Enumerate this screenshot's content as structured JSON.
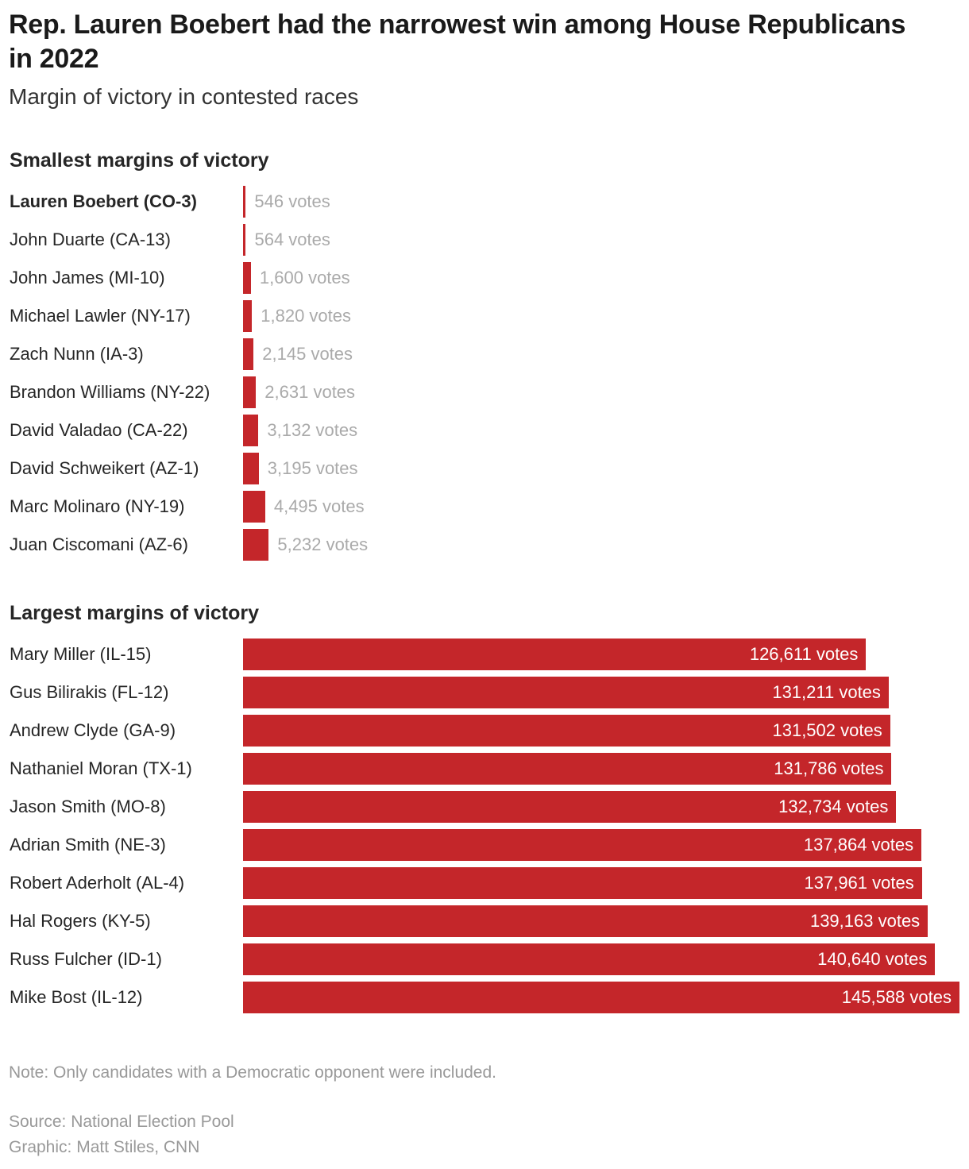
{
  "title": "Rep. Lauren Boebert had the narrowest win among House Republicans in 2022",
  "subtitle": "Margin of victory in contested races",
  "chart_data": [
    {
      "type": "bar",
      "orientation": "horizontal",
      "title": "Smallest margins of victory",
      "color": "#c4262a",
      "highlight": "Lauren Boebert (CO-3)",
      "unit": "votes",
      "categories": [
        "Lauren Boebert (CO-3)",
        "John Duarte (CA-13)",
        "John James (MI-10)",
        "Michael Lawler (NY-17)",
        "Zach Nunn (IA-3)",
        "Brandon Williams (NY-22)",
        "David Valadao (CA-22)",
        "David Schweikert (AZ-1)",
        "Marc Molinaro (NY-19)",
        "Juan Ciscomani (AZ-6)"
      ],
      "values": [
        546,
        564,
        1600,
        1820,
        2145,
        2631,
        3132,
        3195,
        4495,
        5232
      ],
      "labels": [
        "546 votes",
        "564 votes",
        "1,600 votes",
        "1,820 votes",
        "2,145 votes",
        "2,631 votes",
        "3,132 votes",
        "3,195 votes",
        "4,495 votes",
        "5,232 votes"
      ]
    },
    {
      "type": "bar",
      "orientation": "horizontal",
      "title": "Largest margins of victory",
      "color": "#c4262a",
      "unit": "votes",
      "categories": [
        "Mary Miller (IL-15)",
        "Gus Bilirakis (FL-12)",
        "Andrew Clyde (GA-9)",
        "Nathaniel Moran (TX-1)",
        "Jason Smith (MO-8)",
        "Adrian Smith (NE-3)",
        "Robert Aderholt (AL-4)",
        "Hal Rogers (KY-5)",
        "Russ Fulcher (ID-1)",
        "Mike Bost (IL-12)"
      ],
      "values": [
        126611,
        131211,
        131502,
        131786,
        132734,
        137864,
        137961,
        139163,
        140640,
        145588
      ],
      "labels": [
        "126,611 votes",
        "131,211 votes",
        "131,502 votes",
        "131,786 votes",
        "132,734 votes",
        "137,864 votes",
        "137,961 votes",
        "139,163 votes",
        "140,640 votes",
        "145,588 votes"
      ]
    }
  ],
  "footer": {
    "note": "Note: Only candidates with a Democratic opponent were included.",
    "source": "Source: National Election Pool",
    "credit": "Graphic: Matt Stiles, CNN"
  }
}
